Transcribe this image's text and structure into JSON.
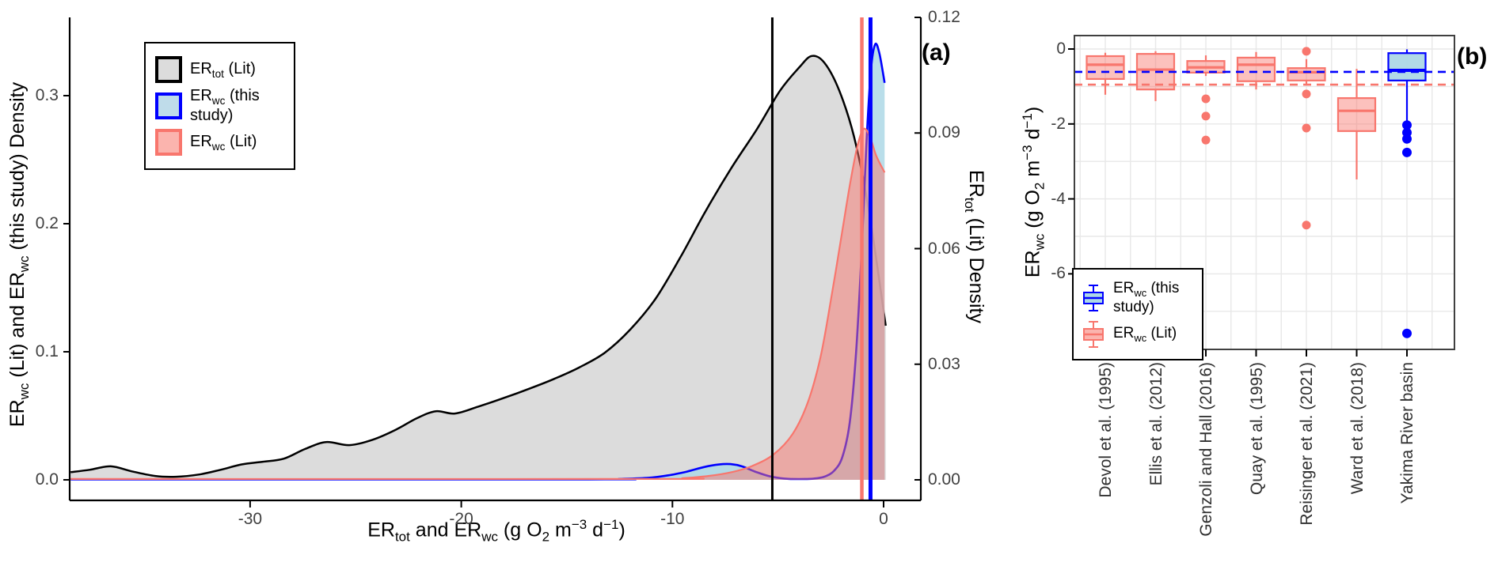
{
  "chart_data": [
    {
      "id": "panel_a",
      "type": "area",
      "panel_label": "(a)",
      "x_label_html": "ER<sub>tot</sub> and ER<sub>wc</sub> (g O<sub>2</sub> m<sup>−3</sup> d<sup>−1</sup>)",
      "y_left_label_html": "ER<sub>wc</sub> (Lit) and ER<sub>wc</sub> (this study) Density",
      "y_right_label_html": "ER<sub>tot</sub> (Lit) Density",
      "x_range": [
        -38.5,
        1.76
      ],
      "x_ticks": [
        {
          "v": -30,
          "t": "-30"
        },
        {
          "v": -20,
          "t": "-20"
        },
        {
          "v": -10,
          "t": "-10"
        },
        {
          "v": 0,
          "t": "0"
        }
      ],
      "y_left_range": [
        0,
        0.361
      ],
      "y_left_ticks": [
        {
          "v": 0,
          "t": "0.0"
        },
        {
          "v": 0.1,
          "t": "0.1"
        },
        {
          "v": 0.2,
          "t": "0.2"
        },
        {
          "v": 0.3,
          "t": "0.3"
        }
      ],
      "y_right_range": [
        0,
        0.1206
      ],
      "y_right_ticks": [
        {
          "v": 0,
          "t": "0.00"
        },
        {
          "v": 0.03,
          "t": "0.03"
        },
        {
          "v": 0.06,
          "t": "0.06"
        },
        {
          "v": 0.09,
          "t": "0.09"
        },
        {
          "v": 0.12,
          "t": "0.12"
        }
      ],
      "legend": [
        {
          "label_html": "ER<sub>tot</sub> (Lit)",
          "stroke": "#000000",
          "fill": "#DCDCDC"
        },
        {
          "label_html": "ER<sub>wc</sub> (this study)",
          "stroke": "#0000FF",
          "fill": "#BFDCEA"
        },
        {
          "label_html": "ER<sub>wc</sub> (Lit)",
          "stroke": "#F8766D",
          "fill": "#FBB4AE"
        }
      ],
      "series": [
        {
          "name": "ertot-lit-density",
          "axis": "right",
          "stroke": "#000000",
          "fill": "#DCDCDC",
          "width": 2.5,
          "x": [
            -38.5,
            -37.6,
            -36.6,
            -35.6,
            -34.5,
            -33.5,
            -32.4,
            -31.4,
            -30.4,
            -29.4,
            -28.4,
            -27.4,
            -26.4,
            -25.3,
            -24.2,
            -23.1,
            -22.1,
            -21.2,
            -20.3,
            -19.2,
            -18.0,
            -16.8,
            -15.6,
            -14.4,
            -13.2,
            -12.0,
            -10.8,
            -9.6,
            -8.4,
            -7.2,
            -6.0,
            -4.9,
            -4.0,
            -3.4,
            -2.8,
            -2.1,
            -1.4,
            -0.7,
            0.1
          ],
          "d": [
            0.002,
            0.0026,
            0.0035,
            0.0022,
            0.001,
            0.0008,
            0.0014,
            0.0026,
            0.004,
            0.0047,
            0.0055,
            0.008,
            0.0098,
            0.009,
            0.0104,
            0.013,
            0.016,
            0.0178,
            0.0172,
            0.019,
            0.0212,
            0.0236,
            0.0262,
            0.0292,
            0.033,
            0.039,
            0.047,
            0.058,
            0.07,
            0.081,
            0.091,
            0.101,
            0.107,
            0.11,
            0.1082,
            0.101,
            0.089,
            0.07,
            0.04
          ]
        },
        {
          "name": "erwc-this-study-density",
          "axis": "left",
          "stroke": "#0000FF",
          "fill": "rgba(173,216,230,0.85)",
          "width": 2.6,
          "x": [
            -38.5,
            -14.0,
            -12.5,
            -11.2,
            -10.2,
            -9.3,
            -8.5,
            -7.8,
            -7.25,
            -6.7,
            -6.1,
            -5.4,
            -4.7,
            -4.0,
            -3.3,
            -2.8,
            -2.35,
            -1.95,
            -1.6,
            -1.3,
            -1.05,
            -0.82,
            -0.6,
            -0.4,
            -0.2,
            0.05
          ],
          "d": [
            0.0004,
            0.0004,
            0.0007,
            0.0015,
            0.0035,
            0.0065,
            0.01,
            0.012,
            0.0123,
            0.0105,
            0.0065,
            0.0028,
            0.001,
            0.0006,
            0.001,
            0.0025,
            0.007,
            0.018,
            0.045,
            0.1,
            0.175,
            0.26,
            0.32,
            0.34,
            0.333,
            0.31
          ]
        },
        {
          "name": "erwc-lit-density",
          "axis": "left",
          "stroke": "#F8766D",
          "fill": "rgba(248,118,109,0.50)",
          "width": 2.2,
          "x": [
            -38.5,
            -11.0,
            -9.5,
            -8.3,
            -7.2,
            -6.2,
            -5.2,
            -4.3,
            -3.6,
            -3.0,
            -2.5,
            -2.0,
            -1.6,
            -1.25,
            -0.95,
            -0.65,
            -0.35,
            0.05
          ],
          "d": [
            0.0007,
            0.0007,
            0.0013,
            0.003,
            0.006,
            0.011,
            0.02,
            0.036,
            0.06,
            0.095,
            0.14,
            0.19,
            0.23,
            0.26,
            0.274,
            0.268,
            0.253,
            0.24
          ]
        }
      ],
      "vlines": [
        {
          "name": "ertot-mean-vline",
          "x": -5.27,
          "color": "#000000",
          "width": 3
        },
        {
          "name": "erwc-lit-mean-vline",
          "x": -1.03,
          "color": "#F8766D",
          "width": 4.5
        },
        {
          "name": "erwc-this-study-mean-vline",
          "x": -0.62,
          "color": "#0000FF",
          "width": 5
        }
      ]
    },
    {
      "id": "panel_b",
      "type": "box",
      "panel_label": "(b)",
      "y_label_html": "ER<sub>wc</sub> (g O<sub>2</sub> m<sup>−3</sup> d<sup>−1</sup>)",
      "y_range": [
        0.36,
        -8.02
      ],
      "y_ticks": [
        {
          "v": 0,
          "t": "0"
        },
        {
          "v": -2,
          "t": "-2"
        },
        {
          "v": -4,
          "t": "-4"
        },
        {
          "v": -6,
          "t": "-6"
        }
      ],
      "categories": [
        "Devol et al. (1995)",
        "Ellis et al. (2012)",
        "Genzoli and Hall (2016)",
        "Quay et al. (1995)",
        "Reisinger et al. (2021)",
        "Ward et al. (2018)",
        "Yakima River basin"
      ],
      "groups": {
        "lit": {
          "stroke": "#F8766D",
          "fill": "rgba(248,118,109,0.45)"
        },
        "this_study": {
          "stroke": "#0000FF",
          "fill": "rgba(173,216,230,0.95)"
        }
      },
      "boxes": [
        {
          "category": "Devol et al. (1995)",
          "group": "lit",
          "whisker_low": -1.22,
          "q1": -0.8,
          "median": -0.42,
          "q3": -0.19,
          "whisker_high": -0.1,
          "outliers": []
        },
        {
          "category": "Ellis et al. (2012)",
          "group": "lit",
          "whisker_low": -1.39,
          "q1": -1.08,
          "median": -0.55,
          "q3": -0.13,
          "whisker_high": -0.06,
          "outliers": []
        },
        {
          "category": "Genzoli and Hall (2016)",
          "group": "lit",
          "whisker_low": -0.72,
          "q1": -0.63,
          "median": -0.49,
          "q3": -0.32,
          "whisker_high": -0.17,
          "outliers": [
            -1.33,
            -1.79,
            -2.43
          ]
        },
        {
          "category": "Quay et al. (1995)",
          "group": "lit",
          "whisker_low": -1.08,
          "q1": -0.86,
          "median": -0.42,
          "q3": -0.23,
          "whisker_high": -0.08,
          "outliers": []
        },
        {
          "category": "Reisinger et al. (2021)",
          "group": "lit",
          "whisker_low": -0.95,
          "q1": -0.84,
          "median": -0.62,
          "q3": -0.51,
          "whisker_high": -0.27,
          "outliers": [
            -0.06,
            -1.2,
            -2.11,
            -4.7
          ]
        },
        {
          "category": "Ward et al. (2018)",
          "group": "lit",
          "whisker_low": -3.48,
          "q1": -2.19,
          "median": -1.65,
          "q3": -1.31,
          "whisker_high": -0.53,
          "outliers": []
        },
        {
          "category": "Yakima River basin",
          "group": "this_study",
          "whisker_low": -1.92,
          "q1": -0.84,
          "median": -0.57,
          "q3": -0.11,
          "whisker_high": -0.01,
          "outliers": [
            -2.03,
            -2.23,
            -2.4,
            -2.76,
            -7.59
          ]
        }
      ],
      "hlines": [
        {
          "name": "this-study-median-hline",
          "y": -0.61,
          "color": "#0000FF"
        },
        {
          "name": "lit-median-hline",
          "y": -0.95,
          "color": "#F8766D"
        }
      ],
      "legend": [
        {
          "label_html": "ER<sub>wc</sub> (this study)",
          "stroke": "#0000FF",
          "fill": "#ADD8E6"
        },
        {
          "label_html": "ER<sub>wc</sub> (Lit)",
          "stroke": "#F8766D",
          "fill": "#FBB4AE"
        }
      ]
    }
  ],
  "style": {
    "grid_color": "#E8E8E8",
    "panel_border_color": "#404040",
    "axis_color": "#000000",
    "tick_text_color": "#404040"
  }
}
